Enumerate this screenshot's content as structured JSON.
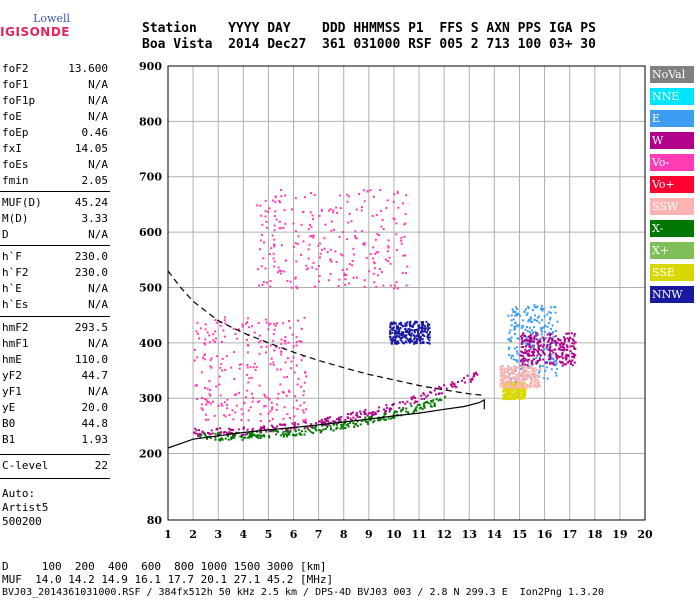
{
  "logo": {
    "line1": "Lowell",
    "line2": "DIGISONDE"
  },
  "header": {
    "line1": "Station    YYYY DAY    DDD HHMMSS P1  FFS S AXN PPS IGA PS",
    "line2": "Boa Vista  2014 Dec27  361 031000 RSF 005 2 713 100 03+ 30"
  },
  "params": [
    {
      "k": "foF2",
      "v": "13.600"
    },
    {
      "k": "foF1",
      "v": "N/A"
    },
    {
      "k": "foF1p",
      "v": "N/A"
    },
    {
      "k": "foE",
      "v": "N/A"
    },
    {
      "k": "foEp",
      "v": "0.46"
    },
    {
      "k": "fxI",
      "v": "14.05"
    },
    {
      "k": "foEs",
      "v": "N/A"
    },
    {
      "k": "fmin",
      "v": "2.05"
    },
    {
      "k": "MUF(D)",
      "v": "45.24"
    },
    {
      "k": "M(D)",
      "v": "3.33"
    },
    {
      "k": "D",
      "v": "N/A"
    },
    {
      "k": "h`F",
      "v": "230.0"
    },
    {
      "k": "h`F2",
      "v": "230.0"
    },
    {
      "k": "h`E",
      "v": "N/A"
    },
    {
      "k": "h`Es",
      "v": "N/A"
    },
    {
      "k": "hmF2",
      "v": "293.5"
    },
    {
      "k": "hmF1",
      "v": "N/A"
    },
    {
      "k": "hmE",
      "v": "110.0"
    },
    {
      "k": "yF2",
      "v": "44.7"
    },
    {
      "k": "yF1",
      "v": "N/A"
    },
    {
      "k": "yE",
      "v": "20.0"
    },
    {
      "k": "B0",
      "v": "44.8"
    },
    {
      "k": "B1",
      "v": "1.93"
    },
    {
      "k": "C-level",
      "v": "22"
    }
  ],
  "auto": {
    "line1": "Auto:",
    "line2": "Artist5",
    "line3": "500200"
  },
  "legend": [
    {
      "label": "NoVal",
      "color": "#808080"
    },
    {
      "label": "NNE",
      "color": "#00e5ff"
    },
    {
      "label": "E",
      "color": "#3d9df2"
    },
    {
      "label": "W",
      "color": "#b0008c"
    },
    {
      "label": "Vo-",
      "color": "#ff3cb4"
    },
    {
      "label": "Vo+",
      "color": "#ff0030"
    },
    {
      "label": "SSW",
      "color": "#ffb3b3"
    },
    {
      "label": "X-",
      "color": "#007800"
    },
    {
      "label": "X+",
      "color": "#7fbf5a"
    },
    {
      "label": "SSE",
      "color": "#d8d800"
    },
    {
      "label": "NNW",
      "color": "#1a1aa0"
    }
  ],
  "footer": {
    "line1": "D     100  200  400  600  800 1000 1500 3000 [km]",
    "line2": "MUF  14.0 14.2 14.9 16.1 17.7 20.1 27.1 45.2 [MHz]",
    "line3": "BVJ03_2014361031000.RSF / 384fx512h 50 kHz 2.5 km / DPS-4D BVJ03 003 / 2.8 N 299.3 E  Ion2Png 1.3.20"
  },
  "chart_data": {
    "type": "scatter",
    "xlim": [
      1,
      20
    ],
    "ylim": [
      80,
      900
    ],
    "x_ticks": [
      1,
      2,
      3,
      4,
      5,
      6,
      7,
      8,
      9,
      10,
      11,
      12,
      13,
      14,
      15,
      16,
      17,
      18,
      19,
      20
    ],
    "y_ticks": [
      80,
      200,
      300,
      400,
      500,
      600,
      700,
      800,
      900
    ],
    "grid": true,
    "curves": [
      {
        "name": "dashed-profile",
        "style": "dashed",
        "x": [
          1.0,
          1.5,
          2.0,
          3.0,
          4.0,
          5.0,
          6.0,
          7.0,
          8.0,
          9.0,
          10.0,
          11.0,
          12.0,
          13.0,
          13.6
        ],
        "y": [
          530,
          500,
          475,
          440,
          418,
          400,
          383,
          368,
          355,
          343,
          333,
          323,
          315,
          308,
          305
        ]
      },
      {
        "name": "solid-profile",
        "style": "solid",
        "x": [
          1.0,
          1.5,
          2.0,
          3.0,
          4.0,
          5.0,
          6.0,
          7.0,
          8.0,
          9.0,
          10.0,
          11.0,
          12.0,
          12.8,
          13.4,
          13.6,
          13.6
        ],
        "y": [
          210,
          218,
          226,
          232,
          238,
          243,
          247,
          252,
          257,
          262,
          268,
          273,
          280,
          285,
          292,
          297,
          280
        ]
      }
    ],
    "point_clouds": [
      {
        "name": "F2 O-trace",
        "color": "#b0008c",
        "x_range": [
          2.0,
          13.6
        ],
        "y_start": 240,
        "y_end": 350
      },
      {
        "name": "spread-F lower",
        "color": "#ff3cb4",
        "x_range": [
          2.0,
          6.5
        ],
        "y_range": [
          260,
          450
        ]
      },
      {
        "name": "high spread",
        "color": "#ff3cb4",
        "x_range": [
          4.5,
          10.5
        ],
        "y_range": [
          500,
          680
        ]
      },
      {
        "name": "NNW cluster",
        "color": "#1a1aa0",
        "x_range": [
          9.8,
          11.4
        ],
        "y_range": [
          400,
          440
        ]
      },
      {
        "name": "E-layer cluster",
        "color": "#3d9df2",
        "x_range": [
          14.5,
          16.5
        ],
        "y_range": [
          330,
          470
        ]
      },
      {
        "name": "W cluster",
        "color": "#b0008c",
        "x_range": [
          15.0,
          17.2
        ],
        "y_range": [
          360,
          420
        ]
      },
      {
        "name": "SSE cluster",
        "color": "#d8d800",
        "x_range": [
          14.3,
          15.2
        ],
        "y_range": [
          300,
          330
        ]
      },
      {
        "name": "SSW cluster",
        "color": "#ffb3b3",
        "x_range": [
          14.2,
          15.8
        ],
        "y_range": [
          320,
          360
        ]
      },
      {
        "name": "X- trace",
        "color": "#007800",
        "x_range": [
          2.2,
          12.0
        ],
        "y_start": 232,
        "y_end": 300
      }
    ]
  }
}
